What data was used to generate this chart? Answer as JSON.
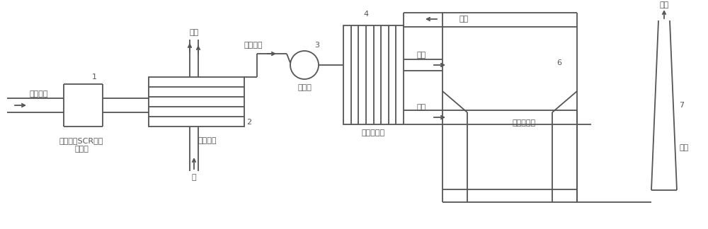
{
  "bg_color": "#ffffff",
  "line_color": "#555555",
  "fig_width": 10.0,
  "fig_height": 3.24,
  "labels": {
    "jiao_lu_yan_qi": "焦炉烟气",
    "scr_line1": "中温耐硫SCR催化",
    "scr_line2": "剂装置",
    "yu_re_guo_lu": "余热锅炉",
    "jiao_hua_yan_qi": "焦化烟气",
    "yin_feng_ji": "引风机",
    "zheng_qi": "蒸汽",
    "shui": "水",
    "re_bei_huan_re_qi": "热备换热器",
    "tuo_liu_xi_shou_ta": "脱硫吸收塔",
    "yan_qi": "烟气",
    "yan_chong": "烟囱",
    "num1": "1",
    "num2": "2",
    "num3": "3",
    "num4": "4",
    "num6": "6",
    "num7": "7",
    "arrow_right": "→",
    "arrow_left": "←",
    "arrow_up": "↑"
  }
}
